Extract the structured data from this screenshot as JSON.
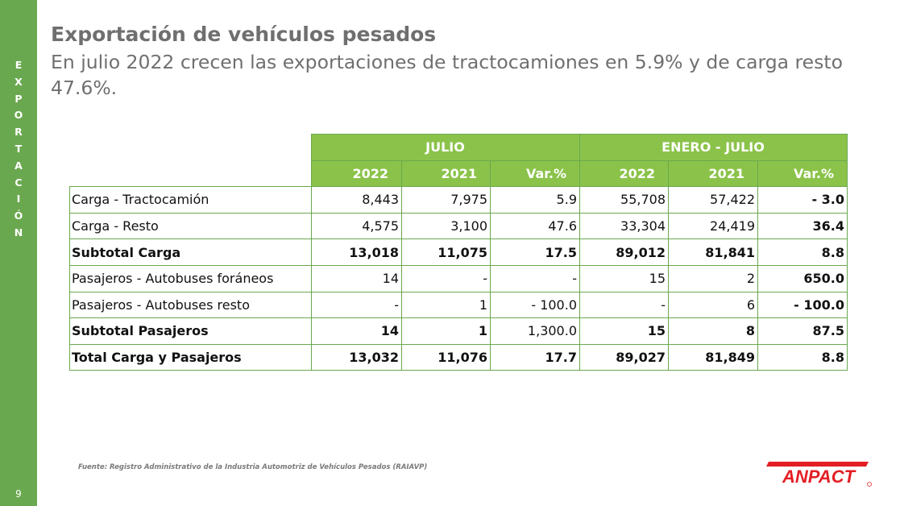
{
  "sidebar": {
    "section_letters": [
      "E",
      "X",
      "P",
      "O",
      "R",
      "T",
      "A",
      "C",
      "I",
      "Ó",
      "N"
    ],
    "page_number": "9"
  },
  "header": {
    "title": "Exportación de vehículos pesados",
    "subtitle": "En julio 2022 crecen las exportaciones de tractocamiones en 5.9% y de carga resto 47.6%."
  },
  "table": {
    "groups": [
      "JULIO",
      "ENERO - JULIO"
    ],
    "columns": [
      "2022",
      "2021",
      "Var.%",
      "2022",
      "2021",
      "Var.%"
    ],
    "rows": [
      {
        "label": "Carga - Tractocamión",
        "values": [
          "8,443",
          "7,975",
          "5.9",
          "55,708",
          "57,422",
          "- 3.0"
        ]
      },
      {
        "label": "Carga - Resto",
        "values": [
          "4,575",
          "3,100",
          "47.6",
          "33,304",
          "24,419",
          "36.4"
        ]
      },
      {
        "label": "Subtotal Carga",
        "values": [
          "13,018",
          "11,075",
          "17.5",
          "89,012",
          "81,841",
          "8.8"
        ]
      },
      {
        "label": "Pasajeros - Autobuses foráneos",
        "values": [
          "14",
          "-",
          "-",
          "15",
          "2",
          "650.0"
        ]
      },
      {
        "label": "Pasajeros - Autobuses resto",
        "values": [
          "-",
          "1",
          "- 100.0",
          "-",
          "6",
          "- 100.0"
        ]
      },
      {
        "label": "Subtotal Pasajeros",
        "values": [
          "14",
          "1",
          "1,300.0",
          "15",
          "8",
          "87.5"
        ]
      },
      {
        "label": "Total Carga y Pasajeros",
        "values": [
          "13,032",
          "11,076",
          "17.7",
          "89,027",
          "81,849",
          "8.8"
        ]
      }
    ]
  },
  "footer": {
    "source": "Fuente: Registro Administrativo de la Industria Automotriz de Vehículos Pesados (RAIAVP)",
    "logo_text": "ANPACT"
  },
  "colors": {
    "accent_green": "#6aa84f",
    "header_green": "#8bc34a",
    "logo_red": "#e31e24",
    "title_gray": "#6f6f6f"
  }
}
